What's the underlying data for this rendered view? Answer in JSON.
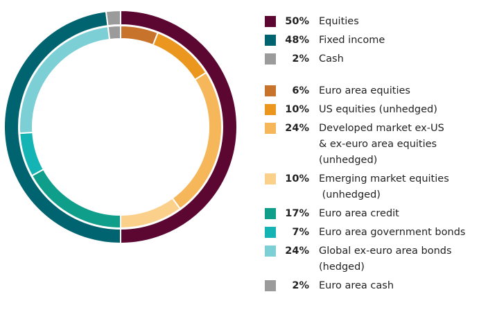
{
  "chart_data": {
    "type": "donut",
    "outer": {
      "categories": [
        "Equities",
        "Fixed income",
        "Cash"
      ],
      "values": [
        50,
        48,
        2
      ],
      "value_labels": [
        "50%",
        "48%",
        "2%"
      ],
      "colors": [
        "#5c0632",
        "#006470",
        "#9b9b9b"
      ]
    },
    "inner": {
      "categories": [
        "Euro area equities",
        "US equities (unhedged)",
        "Developed market ex-US\n& ex-euro area equities\n(unhedged)",
        "Emerging market equities\n (unhedged)",
        "Euro area credit",
        "Euro area government bonds",
        "Global ex-euro area bonds\n(hedged)",
        "Euro area cash"
      ],
      "values": [
        6,
        10,
        24,
        10,
        17,
        7,
        24,
        2
      ],
      "value_labels": [
        "6%",
        "10%",
        "24%",
        "10%",
        "17%",
        "7%",
        "24%",
        "2%"
      ],
      "colors": [
        "#c8732c",
        "#eb961e",
        "#f5b75a",
        "#fbd08a",
        "#0f9e8a",
        "#14b4b4",
        "#7ccfd4",
        "#9b9b9b"
      ]
    }
  }
}
